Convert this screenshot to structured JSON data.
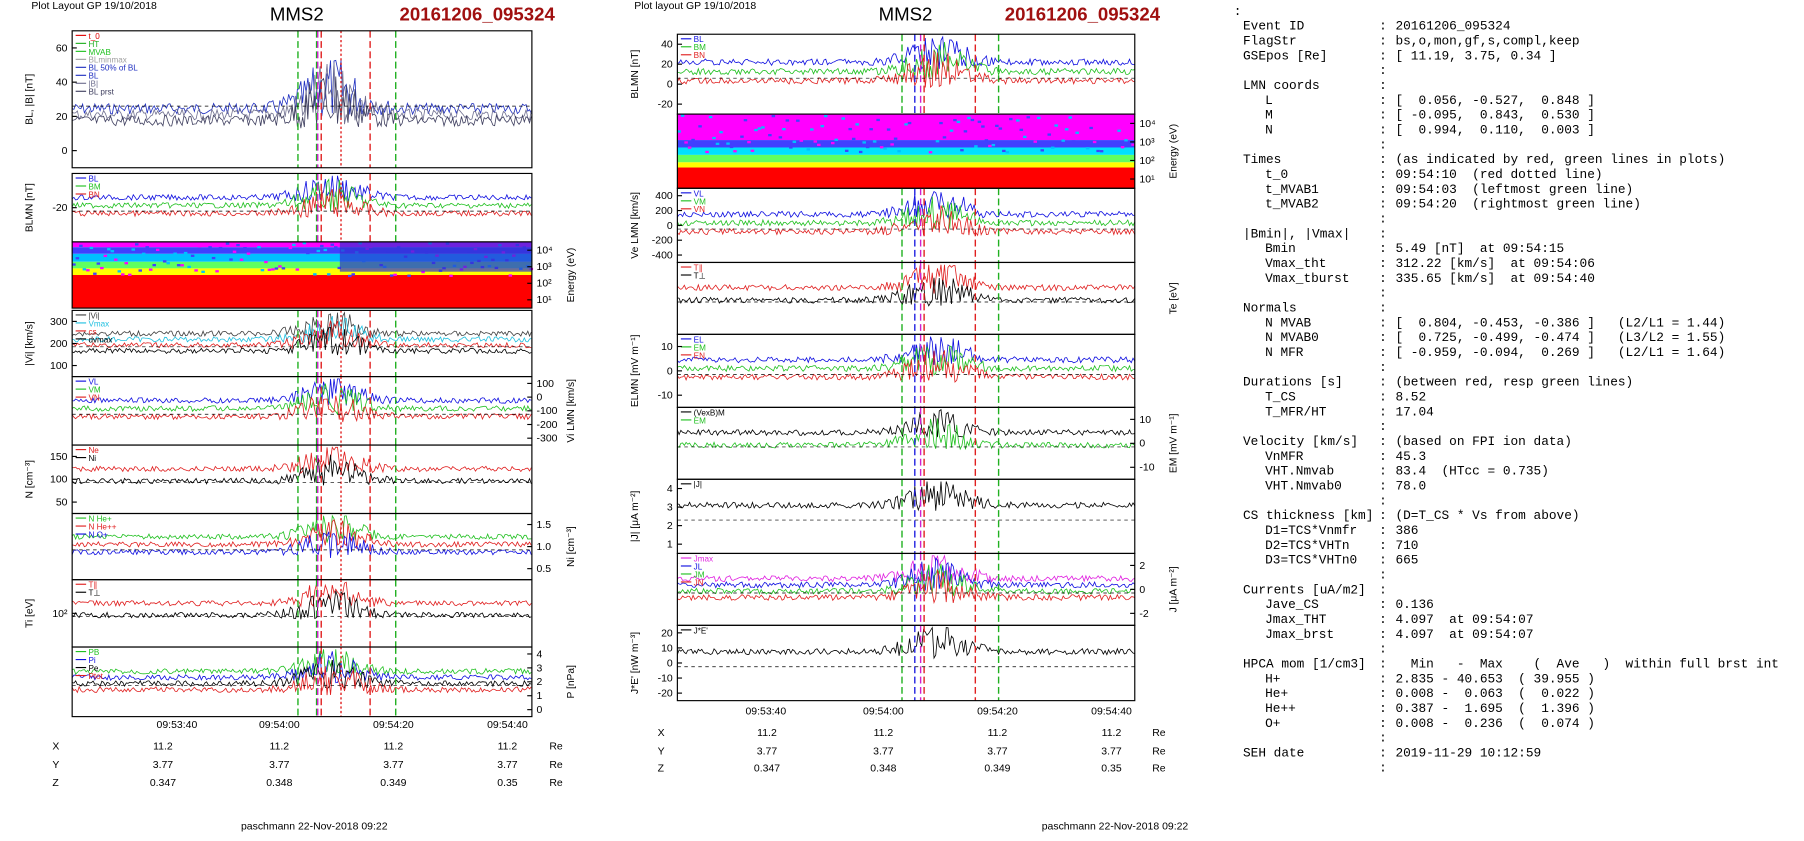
{
  "left": {
    "header": "Plot Layout GP 19/10/2018",
    "probe": "MMS2",
    "event": "20161206_095324",
    "panels": [
      {
        "ylabel": "BL, |B| [nT]",
        "yticks": [
          "60",
          "40",
          "20",
          "0"
        ],
        "legend": [
          {
            "text": "t_0",
            "color": "#e00000"
          },
          {
            "text": "HT",
            "color": "#20b020"
          },
          {
            "text": "MVAB",
            "color": "#20c020"
          },
          {
            "text": "BLminmax",
            "color": "#a0a0a0"
          },
          {
            "text": "BL 50% of BL",
            "color": "#2030c0"
          },
          {
            "text": "BL",
            "color": "#2030c0"
          },
          {
            "text": "|B|",
            "color": "#707090"
          },
          {
            "text": "BL prst",
            "color": "#404060"
          }
        ]
      },
      {
        "ylabel": "BLMN [nT]",
        "yticks": [
          "-20"
        ],
        "legend": [
          {
            "text": "BL",
            "color": "#1010e0"
          },
          {
            "text": "BM",
            "color": "#20c020"
          },
          {
            "text": "BN",
            "color": "#e02020"
          }
        ]
      },
      {
        "rlabel": "Energy (eV)",
        "rticks": [
          "10⁴",
          "10³",
          "10²",
          "10¹"
        ]
      },
      {
        "ylabel": "|Vi| [km/s]",
        "yticks": [
          "300",
          "200",
          "100"
        ],
        "legend": [
          {
            "text": "|Vi|",
            "color": "#404040"
          },
          {
            "text": "Vmax",
            "color": "#20c0e0"
          },
          {
            "text": "cs",
            "color": "#e02020"
          },
          {
            "text": "dvmax",
            "color": "#000000"
          }
        ]
      },
      {
        "rlabel": "Vi LMN [km/s]",
        "rticks": [
          "100",
          "0",
          "-100",
          "-200",
          "-300"
        ],
        "legend": [
          {
            "text": "VL",
            "color": "#1010e0"
          },
          {
            "text": "VM",
            "color": "#20c020"
          },
          {
            "text": "VN",
            "color": "#e02020"
          }
        ]
      },
      {
        "ylabel": "N [cm⁻³]",
        "yticks": [
          "150",
          "100",
          "50"
        ],
        "legend": [
          {
            "text": "Ne",
            "color": "#e02020"
          },
          {
            "text": "Ni",
            "color": "#000000"
          }
        ]
      },
      {
        "rlabel": "Ni [cm⁻³]",
        "rticks": [
          "1.5",
          "1.0",
          "0.5"
        ],
        "legend": [
          {
            "text": "N He+",
            "color": "#20c020"
          },
          {
            "text": "N He++",
            "color": "#e02020"
          },
          {
            "text": "N O+",
            "color": "#1010e0"
          }
        ]
      },
      {
        "ylabel": "Ti [eV]",
        "yticks": [
          "10²"
        ],
        "legend": [
          {
            "text": "T∥",
            "color": "#e02020"
          },
          {
            "text": "T⊥",
            "color": "#000000"
          }
        ]
      },
      {
        "rlabel": "P [nPa]",
        "rticks": [
          "4",
          "3",
          "2",
          "1",
          "0"
        ],
        "legend": [
          {
            "text": "PB",
            "color": "#20c020"
          },
          {
            "text": "Pi",
            "color": "#1010e0"
          },
          {
            "text": "Pe",
            "color": "#000000"
          },
          {
            "text": "Ptot",
            "color": "#e02020"
          }
        ]
      }
    ],
    "times": [
      "09:53:40",
      "09:54:00",
      "09:54:20",
      "09:54:40"
    ],
    "positions": [
      [
        "X",
        "11.2",
        "11.2",
        "11.2",
        "11.2",
        "Re"
      ],
      [
        "Y",
        "3.77",
        "3.77",
        "3.77",
        "3.77",
        "Re"
      ],
      [
        "Z",
        "0.347",
        "0.348",
        "0.349",
        "0.35",
        "Re"
      ]
    ],
    "footer": "paschmann 22-Nov-2018 09:22"
  },
  "right": {
    "header": "Plot layout GP 19/10/2018",
    "probe": "MMS2",
    "event": "20161206_095324",
    "panels": [
      {
        "ylabel": "BLMN [nT]",
        "yticks": [
          "40",
          "20",
          "0",
          "-20"
        ],
        "legend": [
          {
            "text": "BL",
            "color": "#1010e0"
          },
          {
            "text": "BM",
            "color": "#20c020"
          },
          {
            "text": "BN",
            "color": "#e02020"
          }
        ]
      },
      {
        "rlabel": "Energy (eV)",
        "rticks": [
          "10⁴",
          "10³",
          "10²",
          "10¹"
        ]
      },
      {
        "ylabel": "Ve LMN [km/s]",
        "yticks": [
          "400",
          "200",
          "0",
          "-200",
          "-400"
        ],
        "legend": [
          {
            "text": "VL",
            "color": "#1010e0"
          },
          {
            "text": "VM",
            "color": "#20c020"
          },
          {
            "text": "VN",
            "color": "#e02020"
          }
        ]
      },
      {
        "rlabel": "Te [eV]",
        "legend": [
          {
            "text": "T∥",
            "color": "#e02020"
          },
          {
            "text": "T⊥",
            "color": "#000000"
          }
        ]
      },
      {
        "ylabel": "ELMN [mV m⁻¹]",
        "yticks": [
          "10",
          "0",
          "-10"
        ],
        "legend": [
          {
            "text": "EL",
            "color": "#1010e0"
          },
          {
            "text": "EM",
            "color": "#20c020"
          },
          {
            "text": "EN",
            "color": "#e02020"
          }
        ]
      },
      {
        "rlabel": "EM [mV m⁻¹]",
        "rticks": [
          "10",
          "0",
          "-10"
        ],
        "legend": [
          {
            "text": "(VexB)M",
            "color": "#000000"
          },
          {
            "text": "EM",
            "color": "#20c020"
          }
        ]
      },
      {
        "ylabel": "|J| [μA m⁻²]",
        "yticks": [
          "4",
          "3",
          "2",
          "1"
        ],
        "legend": [
          {
            "text": "|J|",
            "color": "#000000"
          }
        ]
      },
      {
        "rlabel": "J [μA m⁻²]",
        "rticks": [
          "2",
          "0",
          "-2"
        ],
        "legend": [
          {
            "text": "Jmax",
            "color": "#e020e0"
          },
          {
            "text": "JL",
            "color": "#1010e0"
          },
          {
            "text": "JM",
            "color": "#20c020"
          },
          {
            "text": "JN",
            "color": "#e02020"
          }
        ]
      },
      {
        "ylabel": "J*E' [nW m⁻³]",
        "yticks": [
          "20",
          "10",
          "0",
          "-10",
          "-20"
        ],
        "legend": [
          {
            "text": "J*E'",
            "color": "#000000"
          }
        ]
      }
    ],
    "times": [
      "09:53:40",
      "09:54:00",
      "09:54:20",
      "09:54:40"
    ],
    "positions": [
      [
        "X",
        "11.2",
        "11.2",
        "11.2",
        "11.2",
        "Re"
      ],
      [
        "Y",
        "3.77",
        "3.77",
        "3.77",
        "3.77",
        "Re"
      ],
      [
        "Z",
        "0.347",
        "0.348",
        "0.349",
        "0.35",
        "Re"
      ]
    ],
    "footer": "paschmann 22-Nov-2018 09:22"
  },
  "info": {
    "groups": [
      [
        {
          "label": "Event ID",
          "value": "20161206_095324"
        },
        {
          "label": "FlagStr",
          "value": "bs,o,mon,gf,s,compl,keep"
        },
        {
          "label": "GSEpos [Re]",
          "value": "[ 11.19, 3.75, 0.34 ]"
        }
      ],
      [
        {
          "label": "LMN coords"
        },
        {
          "label": "L",
          "value": "[  0.056, -0.527,  0.848 ]"
        },
        {
          "label": "M",
          "value": "[ -0.095,  0.843,  0.530 ]"
        },
        {
          "label": "N",
          "value": "[  0.994,  0.110,  0.003 ]"
        }
      ],
      [
        {
          "label": "Times",
          "value": "(as indicated by red, green lines in plots)"
        },
        {
          "label": "t_0",
          "value": "09:54:10  (red dotted line)"
        },
        {
          "label": "t_MVAB1",
          "value": "09:54:03  (leftmost green line)"
        },
        {
          "label": "t_MVAB2",
          "value": "09:54:20  (rightmost green line)"
        }
      ],
      [
        {
          "label": "|Bmin|, |Vmax|"
        },
        {
          "label": "Bmin",
          "value": "5.49 [nT]  at 09:54:15"
        },
        {
          "label": "Vmax_tht",
          "value": "312.22 [km/s]  at 09:54:06"
        },
        {
          "label": "Vmax_tburst",
          "value": "335.65 [km/s]  at 09:54:40"
        }
      ],
      [
        {
          "label": "Normals"
        },
        {
          "label": "N MVAB",
          "value": "[  0.804, -0.453, -0.386 ]   (L2/L1 = 1.44)"
        },
        {
          "label": "N MVAB0",
          "value": "[  0.725, -0.499, -0.474 ]   (L3/L2 = 1.55)"
        },
        {
          "label": "N MFR",
          "value": "[ -0.959, -0.094,  0.269 ]   (L2/L1 = 1.64)"
        }
      ],
      [
        {
          "label": "Durations [s]",
          "value": "(between red, resp green lines)"
        },
        {
          "label": "T_CS",
          "value": "8.52"
        },
        {
          "label": "T_MFR/HT",
          "value": "17.04"
        }
      ],
      [
        {
          "label": "Velocity [km/s]",
          "value": "(based on FPI ion data)"
        },
        {
          "label": "VnMFR",
          "value": "45.3"
        },
        {
          "label": "VHT.Nmvab",
          "value": "83.4  (HTcc = 0.735)"
        },
        {
          "label": "VHT.Nmvab0",
          "value": "78.0"
        }
      ],
      [
        {
          "label": "CS thickness [km]",
          "value": "(D=T_CS * Vs from above)"
        },
        {
          "label": "D1=TCS*Vnmfr",
          "value": "386"
        },
        {
          "label": "D2=TCS*VHTn",
          "value": "710"
        },
        {
          "label": "D3=TCS*VHTn0",
          "value": "665"
        }
      ],
      [
        {
          "label": "Currents [uA/m2]"
        },
        {
          "label": "Jave_CS",
          "value": "0.136"
        },
        {
          "label": "Jmax_THT",
          "value": "4.097  at 09:54:07"
        },
        {
          "label": "Jmax_brst",
          "value": "4.097  at 09:54:07"
        }
      ],
      [
        {
          "label": "HPCA mom [1/cm3]",
          "value": "  Min   -  Max    (  Ave   )  within full brst int"
        },
        {
          "label": "H+",
          "value": "2.835 - 40.653  ( 39.955 )"
        },
        {
          "label": "He+",
          "value": "0.008 -  0.063  (  0.022 )"
        },
        {
          "label": "He++",
          "value": "0.387 -  1.695  (  1.396 )"
        },
        {
          "label": "O+",
          "value": "0.008 -  0.236  (  0.074 )"
        }
      ],
      [
        {
          "label": "SEH date",
          "value": "2019-11-29 10:12:59"
        }
      ]
    ]
  }
}
